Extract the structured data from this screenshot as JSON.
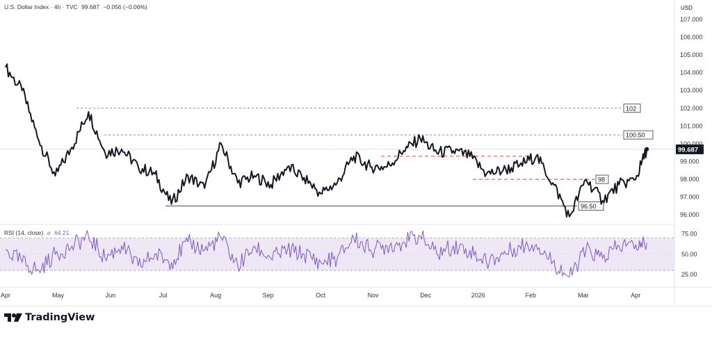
{
  "header": {
    "symbol": "U.S. Dollar Index · 4h · TVC",
    "last": "99.687",
    "change": "−0.056 (−0.06%)"
  },
  "brand": {
    "name": "TradingView"
  },
  "colors": {
    "price_line": "#131722",
    "rsi_line": "#7e57c2",
    "rsi_band": "#ede7f6",
    "support_dashed": "#e53935",
    "grid_dotted": "#9e9e9e"
  },
  "chart_data": [
    {
      "type": "line",
      "name": "U.S. Dollar Index",
      "y_axis_label": "USD",
      "ylim": [
        95.5,
        107.7
      ],
      "y_ticks": [
        "107.000",
        "106.000",
        "105.000",
        "104.000",
        "103.000",
        "102.000",
        "101.000",
        "100.000",
        "99.000",
        "98.000",
        "97.000",
        "96.000"
      ],
      "x_ticks": [
        "Apr",
        "May",
        "Jun",
        "Jul",
        "Aug",
        "Sep",
        "Oct",
        "Nov",
        "Dec",
        "2026",
        "Feb",
        "Mar",
        "Apr"
      ],
      "last_value_label": "99.687",
      "series": [
        {
          "x": [
            0,
            0.3,
            0.6,
            0.9,
            1.2,
            1.5,
            1.8,
            2.1,
            2.4,
            2.7,
            3.0,
            3.3,
            3.6,
            3.9,
            4.2,
            4.5,
            4.8,
            5.1,
            5.4,
            5.7,
            6.0,
            6.3,
            6.6,
            6.9,
            7.2,
            7.5,
            7.8,
            8.1,
            8.4,
            8.7,
            9.0,
            9.3,
            9.6,
            9.9,
            10.2,
            10.5,
            10.8,
            11.1,
            11.4,
            11.6
          ],
          "y": [
            104.3,
            103.0,
            100.2,
            98.2,
            99.8,
            101.8,
            99.5,
            99.7,
            98.7,
            98.3,
            96.6,
            98.2,
            97.5,
            100.0,
            97.8,
            98.2,
            97.7,
            98.7,
            98.1,
            97.2,
            97.8,
            99.3,
            98.7,
            98.7,
            99.6,
            100.3,
            99.5,
            99.6,
            99.3,
            98.3,
            98.5,
            98.8,
            99.3,
            97.8,
            95.9,
            98.0,
            96.8,
            97.7,
            98.0,
            99.7
          ]
        }
      ],
      "annotations": [
        {
          "label": "102",
          "y": 102.0,
          "style": "dashed"
        },
        {
          "label": "100.50",
          "y": 100.5,
          "style": "dashed"
        },
        {
          "label": "98",
          "y": 98.0,
          "style": "red-dashed"
        },
        {
          "label": "96.50",
          "y": 96.5,
          "style": "solid"
        },
        {
          "label": "",
          "y": 99.3,
          "style": "red-dashed"
        }
      ]
    },
    {
      "type": "line",
      "name": "RSI",
      "label": "RSI (14, close)",
      "value_label": "64.21",
      "ylim": [
        12,
        85
      ],
      "y_ticks": [
        "75.00",
        "50.00",
        "25.00"
      ],
      "bands": [
        30,
        70
      ],
      "series": [
        {
          "x": [
            0,
            0.3,
            0.6,
            0.9,
            1.2,
            1.5,
            1.8,
            2.1,
            2.4,
            2.7,
            3.0,
            3.3,
            3.6,
            3.9,
            4.2,
            4.5,
            4.8,
            5.1,
            5.4,
            5.7,
            6.0,
            6.3,
            6.6,
            6.9,
            7.2,
            7.5,
            7.8,
            8.1,
            8.4,
            8.7,
            9.0,
            9.3,
            9.6,
            9.9,
            10.2,
            10.5,
            10.8,
            11.1,
            11.4,
            11.6
          ],
          "y": [
            55,
            40,
            30,
            50,
            60,
            72,
            45,
            60,
            35,
            50,
            40,
            65,
            55,
            70,
            35,
            60,
            45,
            55,
            50,
            40,
            45,
            70,
            55,
            60,
            65,
            72,
            50,
            60,
            55,
            40,
            50,
            60,
            62,
            40,
            22,
            55,
            45,
            60,
            62,
            64
          ]
        }
      ]
    }
  ]
}
